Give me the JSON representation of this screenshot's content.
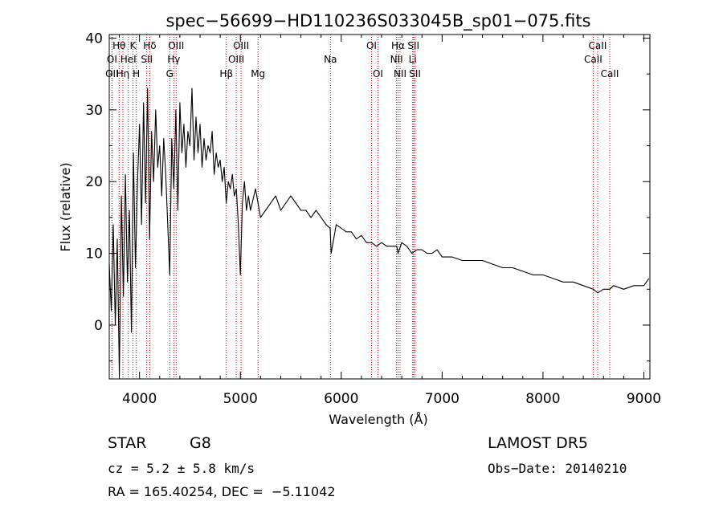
{
  "chart_data": {
    "type": "line",
    "title": "spec−56699−HD110236S033045B_sp01−075.fits",
    "xlabel": "Wavelength (Å)",
    "ylabel": "Flux (relative)",
    "xlim": [
      3700,
      9060
    ],
    "ylim": [
      -7.5,
      40.5
    ],
    "grid": false,
    "x_ticks": [
      4000,
      5000,
      6000,
      7000,
      8000,
      9000
    ],
    "y_ticks": [
      0,
      10,
      20,
      30,
      40
    ],
    "line_color": "#000000",
    "marker_color": "#cc0000",
    "series": [
      {
        "x": [
          3700,
          3720,
          3740,
          3760,
          3780,
          3800,
          3820,
          3840,
          3860,
          3880,
          3900,
          3920,
          3940,
          3960,
          3980,
          4000,
          4020,
          4040,
          4060,
          4080,
          4100,
          4120,
          4140,
          4160,
          4180,
          4200,
          4220,
          4240,
          4260,
          4280,
          4300,
          4320,
          4340,
          4360,
          4380,
          4400,
          4420,
          4440,
          4460,
          4480,
          4500,
          4520,
          4540,
          4560,
          4580,
          4600,
          4620,
          4640,
          4660,
          4680,
          4700,
          4720,
          4740,
          4760,
          4780,
          4800,
          4820,
          4840,
          4860,
          4880,
          4900,
          4920,
          4940,
          4960,
          4980,
          5000,
          5020,
          5040,
          5060,
          5080,
          5100,
          5150,
          5200,
          5250,
          5300,
          5350,
          5400,
          5450,
          5500,
          5550,
          5600,
          5650,
          5700,
          5750,
          5800,
          5850,
          5890,
          5900,
          5950,
          6000,
          6050,
          6100,
          6150,
          6200,
          6250,
          6300,
          6350,
          6400,
          6450,
          6500,
          6550,
          6563,
          6600,
          6650,
          6700,
          6750,
          6800,
          6850,
          6900,
          6950,
          7000,
          7100,
          7200,
          7300,
          7400,
          7500,
          7600,
          7700,
          7800,
          7900,
          8000,
          8100,
          8200,
          8300,
          8400,
          8500,
          8542,
          8600,
          8662,
          8700,
          8800,
          8900,
          9000,
          9050
        ],
        "y": [
          8.5,
          2,
          14,
          0,
          12,
          -7.2,
          18,
          4,
          21,
          6,
          16,
          -1,
          24,
          8,
          20,
          28,
          14,
          31,
          17,
          33,
          12,
          27,
          20,
          30,
          22,
          25,
          18,
          26,
          21,
          14,
          7,
          26,
          19,
          30,
          16,
          31,
          24,
          28,
          22,
          27,
          25,
          33,
          23,
          29,
          24,
          28,
          22,
          26,
          23,
          25,
          24,
          27,
          21,
          24,
          22,
          23,
          20,
          22,
          17,
          20,
          19,
          21,
          18,
          19,
          14,
          7,
          17,
          20,
          16,
          18,
          16,
          19,
          15,
          16,
          17,
          18,
          16,
          17,
          18,
          17,
          16,
          16,
          15,
          16,
          15,
          14,
          13.5,
          10,
          14,
          13.5,
          13,
          13,
          12,
          12.5,
          11.5,
          11.5,
          11,
          11.5,
          11,
          11,
          11,
          10,
          11.5,
          11,
          10,
          10.5,
          10.5,
          10,
          10,
          10.5,
          9.5,
          9.5,
          9,
          9,
          9,
          8.5,
          8,
          8,
          7.5,
          7,
          7,
          6.5,
          6,
          6,
          5.5,
          5,
          4.5,
          5,
          5,
          5.5,
          5,
          5.5,
          5.5,
          6.5
        ]
      }
    ],
    "spectral_lines": [
      {
        "label": "OI",
        "wavelength": 3727,
        "row": 2
      },
      {
        "label": "OII",
        "wavelength": 3727,
        "row": 3
      },
      {
        "label": "Hθ",
        "wavelength": 3798,
        "row": 1
      },
      {
        "label": "Hη",
        "wavelength": 3835,
        "row": 3
      },
      {
        "label": "HeI",
        "wavelength": 3889,
        "row": 2
      },
      {
        "label": "K",
        "wavelength": 3934,
        "row": 1
      },
      {
        "label": "H",
        "wavelength": 3968,
        "row": 3
      },
      {
        "label": "SII",
        "wavelength": 4072,
        "row": 2
      },
      {
        "label": "Hδ",
        "wavelength": 4102,
        "row": 1
      },
      {
        "label": "G",
        "wavelength": 4300,
        "row": 3
      },
      {
        "label": "Hγ",
        "wavelength": 4340,
        "row": 2
      },
      {
        "label": "OIII",
        "wavelength": 4363,
        "row": 1
      },
      {
        "label": "Hβ",
        "wavelength": 4861,
        "row": 3
      },
      {
        "label": "OIII",
        "wavelength": 4959,
        "row": 2
      },
      {
        "label": "OIII",
        "wavelength": 5007,
        "row": 1
      },
      {
        "label": "Mg",
        "wavelength": 5175,
        "row": 3
      },
      {
        "label": "Na",
        "wavelength": 5893,
        "row": 2
      },
      {
        "label": "OI",
        "wavelength": 6300,
        "row": 1
      },
      {
        "label": "OI",
        "wavelength": 6364,
        "row": 3
      },
      {
        "label": "NII",
        "wavelength": 6548,
        "row": 2
      },
      {
        "label": "NII",
        "wavelength": 6583,
        "row": 3
      },
      {
        "label": "Hα",
        "wavelength": 6563,
        "row": 1
      },
      {
        "label": "Li",
        "wavelength": 6708,
        "row": 2
      },
      {
        "label": "SII",
        "wavelength": 6716,
        "row": 1
      },
      {
        "label": "SII",
        "wavelength": 6731,
        "row": 3
      },
      {
        "label": "CaII",
        "wavelength": 8498,
        "row": 2
      },
      {
        "label": "CaII",
        "wavelength": 8542,
        "row": 1
      },
      {
        "label": "CaII",
        "wavelength": 8662,
        "row": 3
      }
    ]
  },
  "info": {
    "class_label": "STAR",
    "subclass": "G8",
    "survey": "LAMOST DR5",
    "redshift": "cz = 5.2 ± 5.8 km/s",
    "obs_date": "Obs−Date: 20140210",
    "coords": "RA = 165.40254, DEC =  −5.11042"
  }
}
